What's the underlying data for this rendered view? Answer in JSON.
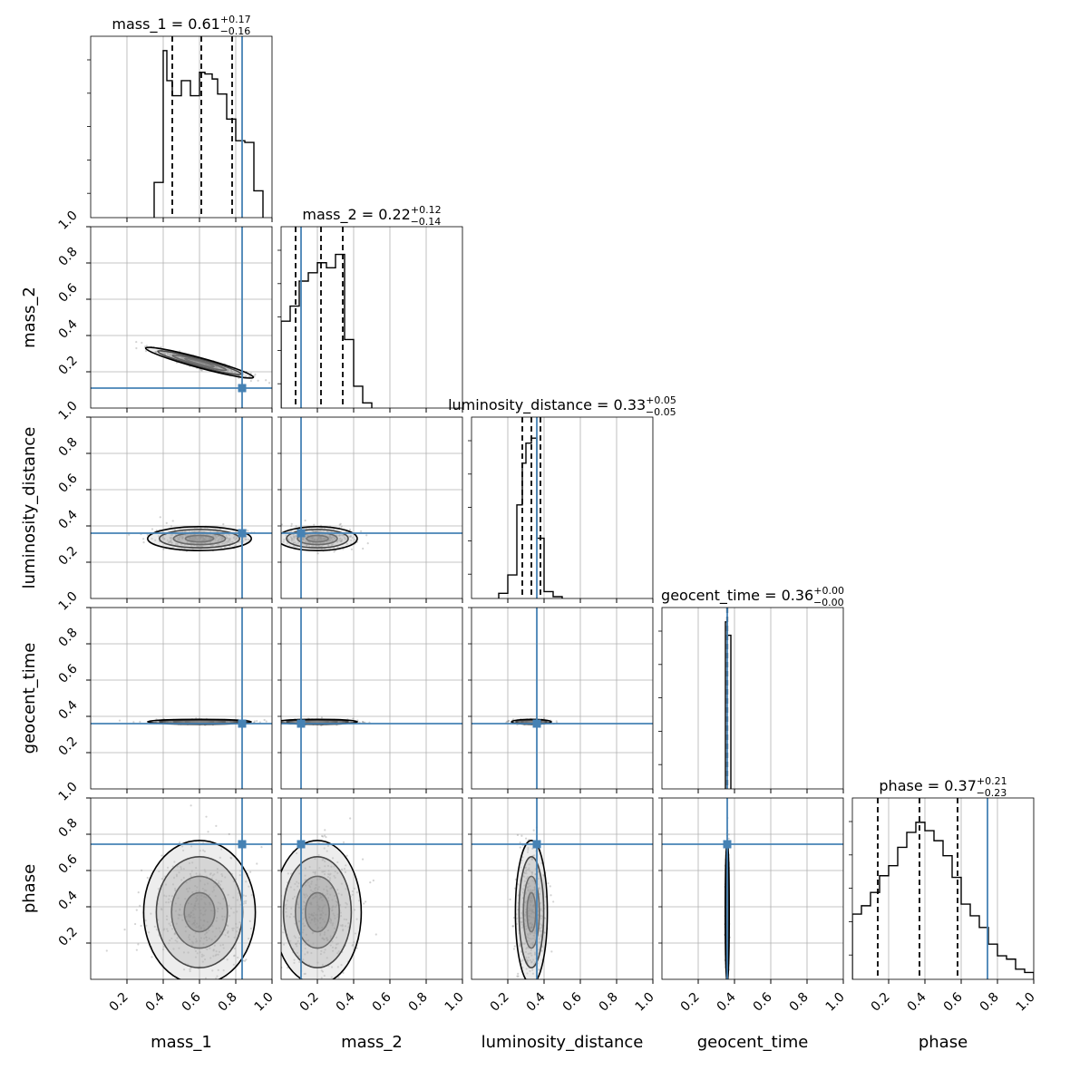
{
  "chart_data": {
    "type": "corner",
    "parameters": [
      "mass_1",
      "mass_2",
      "luminosity_distance",
      "geocent_time",
      "phase"
    ],
    "axis_range": [
      0.0,
      1.0
    ],
    "ticks": [
      0.2,
      0.4,
      0.6,
      0.8,
      1.0
    ],
    "tick_labels": [
      "0.2",
      "0.4",
      "0.6",
      "0.8",
      "1.0"
    ],
    "grid": true,
    "colors": {
      "truth": "#4682b4",
      "hist": "#000000",
      "quantile": "#000000",
      "points": "#808080"
    },
    "titles": [
      {
        "name": "mass_1",
        "median": "0.61",
        "plus": "+0.17",
        "minus": "−0.16"
      },
      {
        "name": "mass_2",
        "median": "0.22",
        "plus": "+0.12",
        "minus": "−0.14"
      },
      {
        "name": "luminosity_distance",
        "median": "0.33",
        "plus": "+0.05",
        "minus": "−0.05"
      },
      {
        "name": "geocent_time",
        "median": "0.36",
        "plus": "+0.00",
        "minus": "−0.00"
      },
      {
        "name": "phase",
        "median": "0.37",
        "plus": "+0.21",
        "minus": "−0.23"
      }
    ],
    "truths": [
      0.835,
      0.11,
      0.36,
      0.36,
      0.745
    ],
    "quantiles": [
      [
        0.45,
        0.61,
        0.78
      ],
      [
        0.08,
        0.22,
        0.34
      ],
      [
        0.28,
        0.33,
        0.38
      ],
      [
        0.359,
        0.36,
        0.361
      ],
      [
        0.14,
        0.37,
        0.58
      ]
    ],
    "histograms": [
      {
        "edges": [
          0.35,
          0.4,
          0.42,
          0.45,
          0.5,
          0.55,
          0.6,
          0.63,
          0.67,
          0.7,
          0.75,
          0.8,
          0.85,
          0.9,
          0.95
        ],
        "values": [
          0.2,
          0.99,
          0.81,
          0.72,
          0.81,
          0.72,
          0.86,
          0.85,
          0.82,
          0.73,
          0.58,
          0.45,
          0.44,
          0.15
        ]
      },
      {
        "edges": [
          0.0,
          0.05,
          0.1,
          0.15,
          0.2,
          0.25,
          0.3,
          0.35,
          0.4,
          0.45,
          0.5
        ],
        "values": [
          0.51,
          0.6,
          0.75,
          0.8,
          0.86,
          0.83,
          0.91,
          0.4,
          0.12,
          0.02
        ]
      },
      {
        "edges": [
          0.15,
          0.2,
          0.25,
          0.28,
          0.3,
          0.33,
          0.36,
          0.4,
          0.45,
          0.5
        ],
        "values": [
          0.02,
          0.13,
          0.55,
          0.8,
          0.92,
          0.95,
          0.35,
          0.03,
          0.0
        ]
      },
      {
        "edges": [
          0.35,
          0.36,
          0.38
        ],
        "values": [
          0.99,
          0.91
        ]
      },
      {
        "edges": [
          0.0,
          0.05,
          0.1,
          0.15,
          0.2,
          0.25,
          0.3,
          0.35,
          0.4,
          0.45,
          0.5,
          0.55,
          0.6,
          0.65,
          0.7,
          0.75,
          0.8,
          0.85,
          0.9,
          0.95,
          1.0
        ],
        "values": [
          0.38,
          0.43,
          0.51,
          0.61,
          0.67,
          0.78,
          0.87,
          0.93,
          0.88,
          0.82,
          0.73,
          0.6,
          0.44,
          0.37,
          0.3,
          0.2,
          0.13,
          0.11,
          0.05,
          0.03
        ]
      }
    ],
    "pair_panels": [
      {
        "x": "mass_1",
        "y": "mass_2",
        "center": [
          0.6,
          0.25
        ],
        "spread": [
          0.14,
          0.04
        ],
        "rho": -0.95
      },
      {
        "x": "mass_1",
        "y": "luminosity_distance",
        "center": [
          0.6,
          0.33
        ],
        "spread": [
          0.13,
          0.03
        ],
        "rho": 0.0
      },
      {
        "x": "mass_2",
        "y": "luminosity_distance",
        "center": [
          0.2,
          0.33
        ],
        "spread": [
          0.1,
          0.03
        ],
        "rho": 0.0
      },
      {
        "x": "mass_1",
        "y": "geocent_time",
        "center": [
          0.6,
          0.37
        ],
        "spread": [
          0.13,
          0.006
        ],
        "rho": 0.0
      },
      {
        "x": "mass_2",
        "y": "geocent_time",
        "center": [
          0.2,
          0.37
        ],
        "spread": [
          0.1,
          0.006
        ],
        "rho": 0.0
      },
      {
        "x": "luminosity_distance",
        "y": "geocent_time",
        "center": [
          0.33,
          0.37
        ],
        "spread": [
          0.05,
          0.006
        ],
        "rho": 0.0
      },
      {
        "x": "mass_1",
        "y": "phase",
        "center": [
          0.6,
          0.37
        ],
        "spread": [
          0.14,
          0.18
        ],
        "rho": 0.0
      },
      {
        "x": "mass_2",
        "y": "phase",
        "center": [
          0.2,
          0.37
        ],
        "spread": [
          0.11,
          0.18
        ],
        "rho": 0.0
      },
      {
        "x": "luminosity_distance",
        "y": "phase",
        "center": [
          0.33,
          0.37
        ],
        "spread": [
          0.04,
          0.18
        ],
        "rho": 0.0
      },
      {
        "x": "geocent_time",
        "y": "phase",
        "center": [
          0.36,
          0.37
        ],
        "spread": [
          0.005,
          0.18
        ],
        "rho": 0.0
      }
    ]
  }
}
